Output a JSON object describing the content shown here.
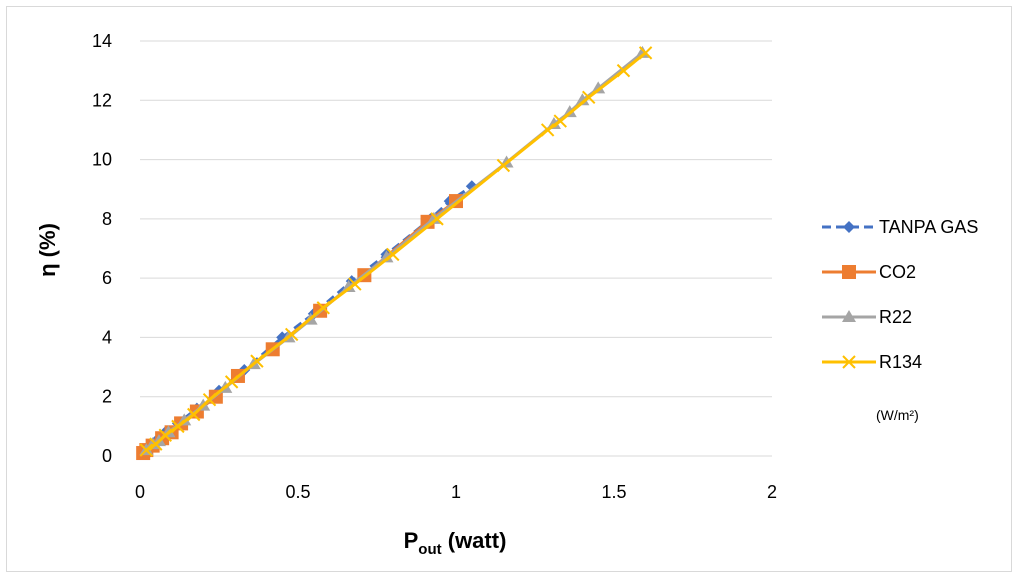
{
  "chart_data": {
    "type": "line",
    "xlabel_main": "P",
    "xlabel_sub": "out",
    "xlabel_rest": " (watt)",
    "ylabel": "η (%)",
    "xlim": [
      0,
      2
    ],
    "ylim": [
      0,
      14
    ],
    "xticks": [
      "0",
      "0.5",
      "1",
      "1.5",
      "2"
    ],
    "yticks": [
      "0",
      "2",
      "4",
      "6",
      "8",
      "10",
      "12",
      "14"
    ],
    "grid": "horizontal",
    "legend_position": "right",
    "legend_note": "(W/m²)",
    "series": [
      {
        "name": "TANPA GAS",
        "color": "#4472C4",
        "marker": "diamond",
        "dashed": true,
        "x": [
          0.01,
          0.03,
          0.05,
          0.08,
          0.12,
          0.18,
          0.25,
          0.33,
          0.45,
          0.55,
          0.67,
          0.78,
          0.92,
          0.98,
          1.05
        ],
        "y": [
          0.1,
          0.3,
          0.5,
          0.8,
          1.1,
          1.6,
          2.2,
          2.9,
          4.0,
          4.8,
          5.9,
          6.8,
          8.0,
          8.6,
          9.1
        ]
      },
      {
        "name": "CO2",
        "color": "#ED7D31",
        "marker": "square",
        "dashed": false,
        "x": [
          0.01,
          0.02,
          0.04,
          0.07,
          0.1,
          0.13,
          0.18,
          0.24,
          0.31,
          0.42,
          0.57,
          0.71,
          0.91,
          1.0
        ],
        "y": [
          0.1,
          0.2,
          0.35,
          0.6,
          0.8,
          1.1,
          1.5,
          2.0,
          2.7,
          3.6,
          4.9,
          6.1,
          7.9,
          8.6
        ]
      },
      {
        "name": "R22",
        "color": "#A5A5A5",
        "marker": "triangle",
        "dashed": false,
        "x": [
          0.02,
          0.04,
          0.06,
          0.09,
          0.14,
          0.2,
          0.27,
          0.36,
          0.47,
          0.54,
          0.66,
          0.78,
          0.93,
          1.16,
          1.31,
          1.36,
          1.4,
          1.45,
          1.59
        ],
        "y": [
          0.2,
          0.4,
          0.5,
          0.8,
          1.2,
          1.7,
          2.3,
          3.1,
          4.0,
          4.6,
          5.7,
          6.7,
          8.0,
          9.9,
          11.2,
          11.6,
          12.0,
          12.4,
          13.6
        ]
      },
      {
        "name": "R134",
        "color": "#FFC000",
        "marker": "x",
        "dashed": false,
        "x": [
          0.02,
          0.05,
          0.08,
          0.12,
          0.17,
          0.22,
          0.29,
          0.37,
          0.48,
          0.58,
          0.68,
          0.8,
          0.94,
          1.15,
          1.29,
          1.33,
          1.42,
          1.53,
          1.6
        ],
        "y": [
          0.2,
          0.4,
          0.7,
          1.0,
          1.4,
          1.9,
          2.5,
          3.2,
          4.1,
          5.0,
          5.8,
          6.8,
          8.0,
          9.8,
          11.0,
          11.3,
          12.1,
          13.0,
          13.6
        ]
      }
    ]
  }
}
